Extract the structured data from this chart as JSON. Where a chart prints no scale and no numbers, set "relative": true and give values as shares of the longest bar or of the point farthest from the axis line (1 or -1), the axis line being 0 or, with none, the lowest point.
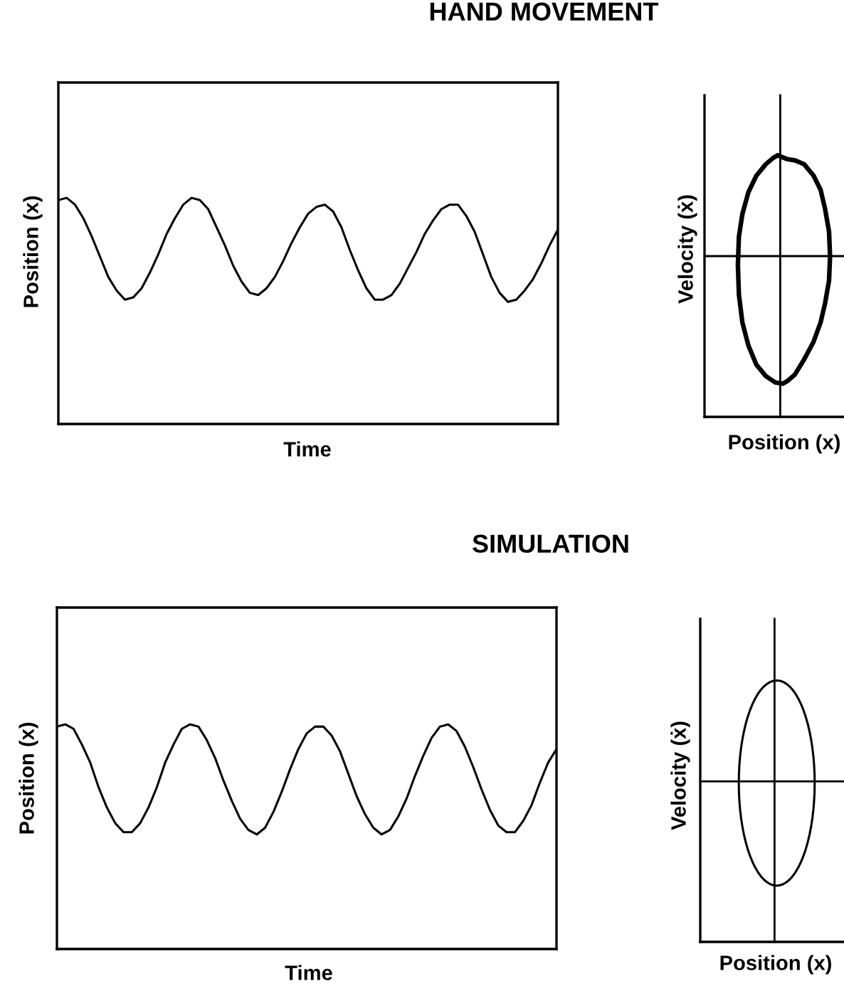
{
  "chart_data": [
    {
      "type": "line",
      "title": "HAND MOVEMENT",
      "xlabel": "Time",
      "ylabel": "Position (x)",
      "relative": true,
      "categories": [
        null,
        null,
        null,
        null,
        null,
        null,
        null,
        null,
        null,
        null,
        null,
        null,
        null,
        null,
        null,
        null,
        null,
        null,
        null,
        null,
        null,
        null,
        null,
        null,
        null,
        null,
        null,
        null,
        null,
        null,
        null,
        null,
        null,
        null,
        null,
        null,
        null,
        null,
        null,
        null,
        null,
        null,
        null,
        null,
        null,
        null,
        null,
        null,
        null,
        null,
        null,
        null,
        null,
        null,
        null,
        null,
        null,
        null,
        null,
        null,
        null
      ],
      "series": [
        {
          "color": "#000000",
          "values": [
            0.99,
            1.0,
            0.97,
            0.91,
            0.83,
            0.74,
            0.65,
            0.59,
            0.55,
            0.56,
            0.6,
            0.67,
            0.75,
            0.84,
            0.91,
            0.97,
            1.0,
            0.99,
            0.95,
            0.87,
            0.79,
            0.7,
            0.63,
            0.58,
            0.57,
            0.6,
            0.65,
            0.72,
            0.8,
            0.87,
            0.93,
            0.96,
            0.97,
            0.94,
            0.87,
            0.77,
            0.68,
            0.6,
            0.55,
            0.55,
            0.57,
            0.62,
            0.69,
            0.76,
            0.84,
            0.9,
            0.95,
            0.97,
            0.97,
            0.92,
            0.85,
            0.75,
            0.65,
            0.58,
            0.54,
            0.55,
            0.59,
            0.64,
            0.71,
            0.79,
            0.86
          ]
        }
      ]
    },
    {
      "type": "other",
      "xlabel": "Position (x)",
      "ylabel": "Velocity (ẋ)"
    },
    {
      "type": "line",
      "title": "SIMULATION",
      "xlabel": "Time",
      "ylabel": "Position (x)",
      "relative": true,
      "categories": [
        null,
        null,
        null,
        null,
        null,
        null,
        null,
        null,
        null,
        null,
        null,
        null,
        null,
        null,
        null,
        null,
        null,
        null,
        null,
        null,
        null,
        null,
        null,
        null,
        null,
        null,
        null,
        null,
        null,
        null,
        null,
        null,
        null,
        null,
        null,
        null,
        null,
        null,
        null,
        null,
        null,
        null,
        null,
        null,
        null,
        null,
        null,
        null,
        null,
        null,
        null,
        null,
        null,
        null,
        null,
        null,
        null,
        null,
        null,
        null,
        null
      ],
      "series": [
        {
          "color": "#000000",
          "values": [
            0.99,
            1.0,
            0.98,
            0.91,
            0.83,
            0.72,
            0.63,
            0.56,
            0.52,
            0.52,
            0.56,
            0.63,
            0.72,
            0.83,
            0.91,
            0.98,
            1.0,
            0.99,
            0.93,
            0.85,
            0.75,
            0.66,
            0.58,
            0.53,
            0.51,
            0.54,
            0.61,
            0.7,
            0.8,
            0.89,
            0.96,
            0.99,
            0.99,
            0.95,
            0.88,
            0.78,
            0.68,
            0.6,
            0.54,
            0.51,
            0.53,
            0.59,
            0.67,
            0.77,
            0.86,
            0.94,
            0.99,
            1.0,
            0.97,
            0.9,
            0.81,
            0.71,
            0.62,
            0.55,
            0.52,
            0.52,
            0.57,
            0.64,
            0.74,
            0.83,
            0.89
          ]
        }
      ]
    },
    {
      "type": "other",
      "xlabel": "Position (x)",
      "ylabel": "Velocity (ẋ)"
    }
  ]
}
